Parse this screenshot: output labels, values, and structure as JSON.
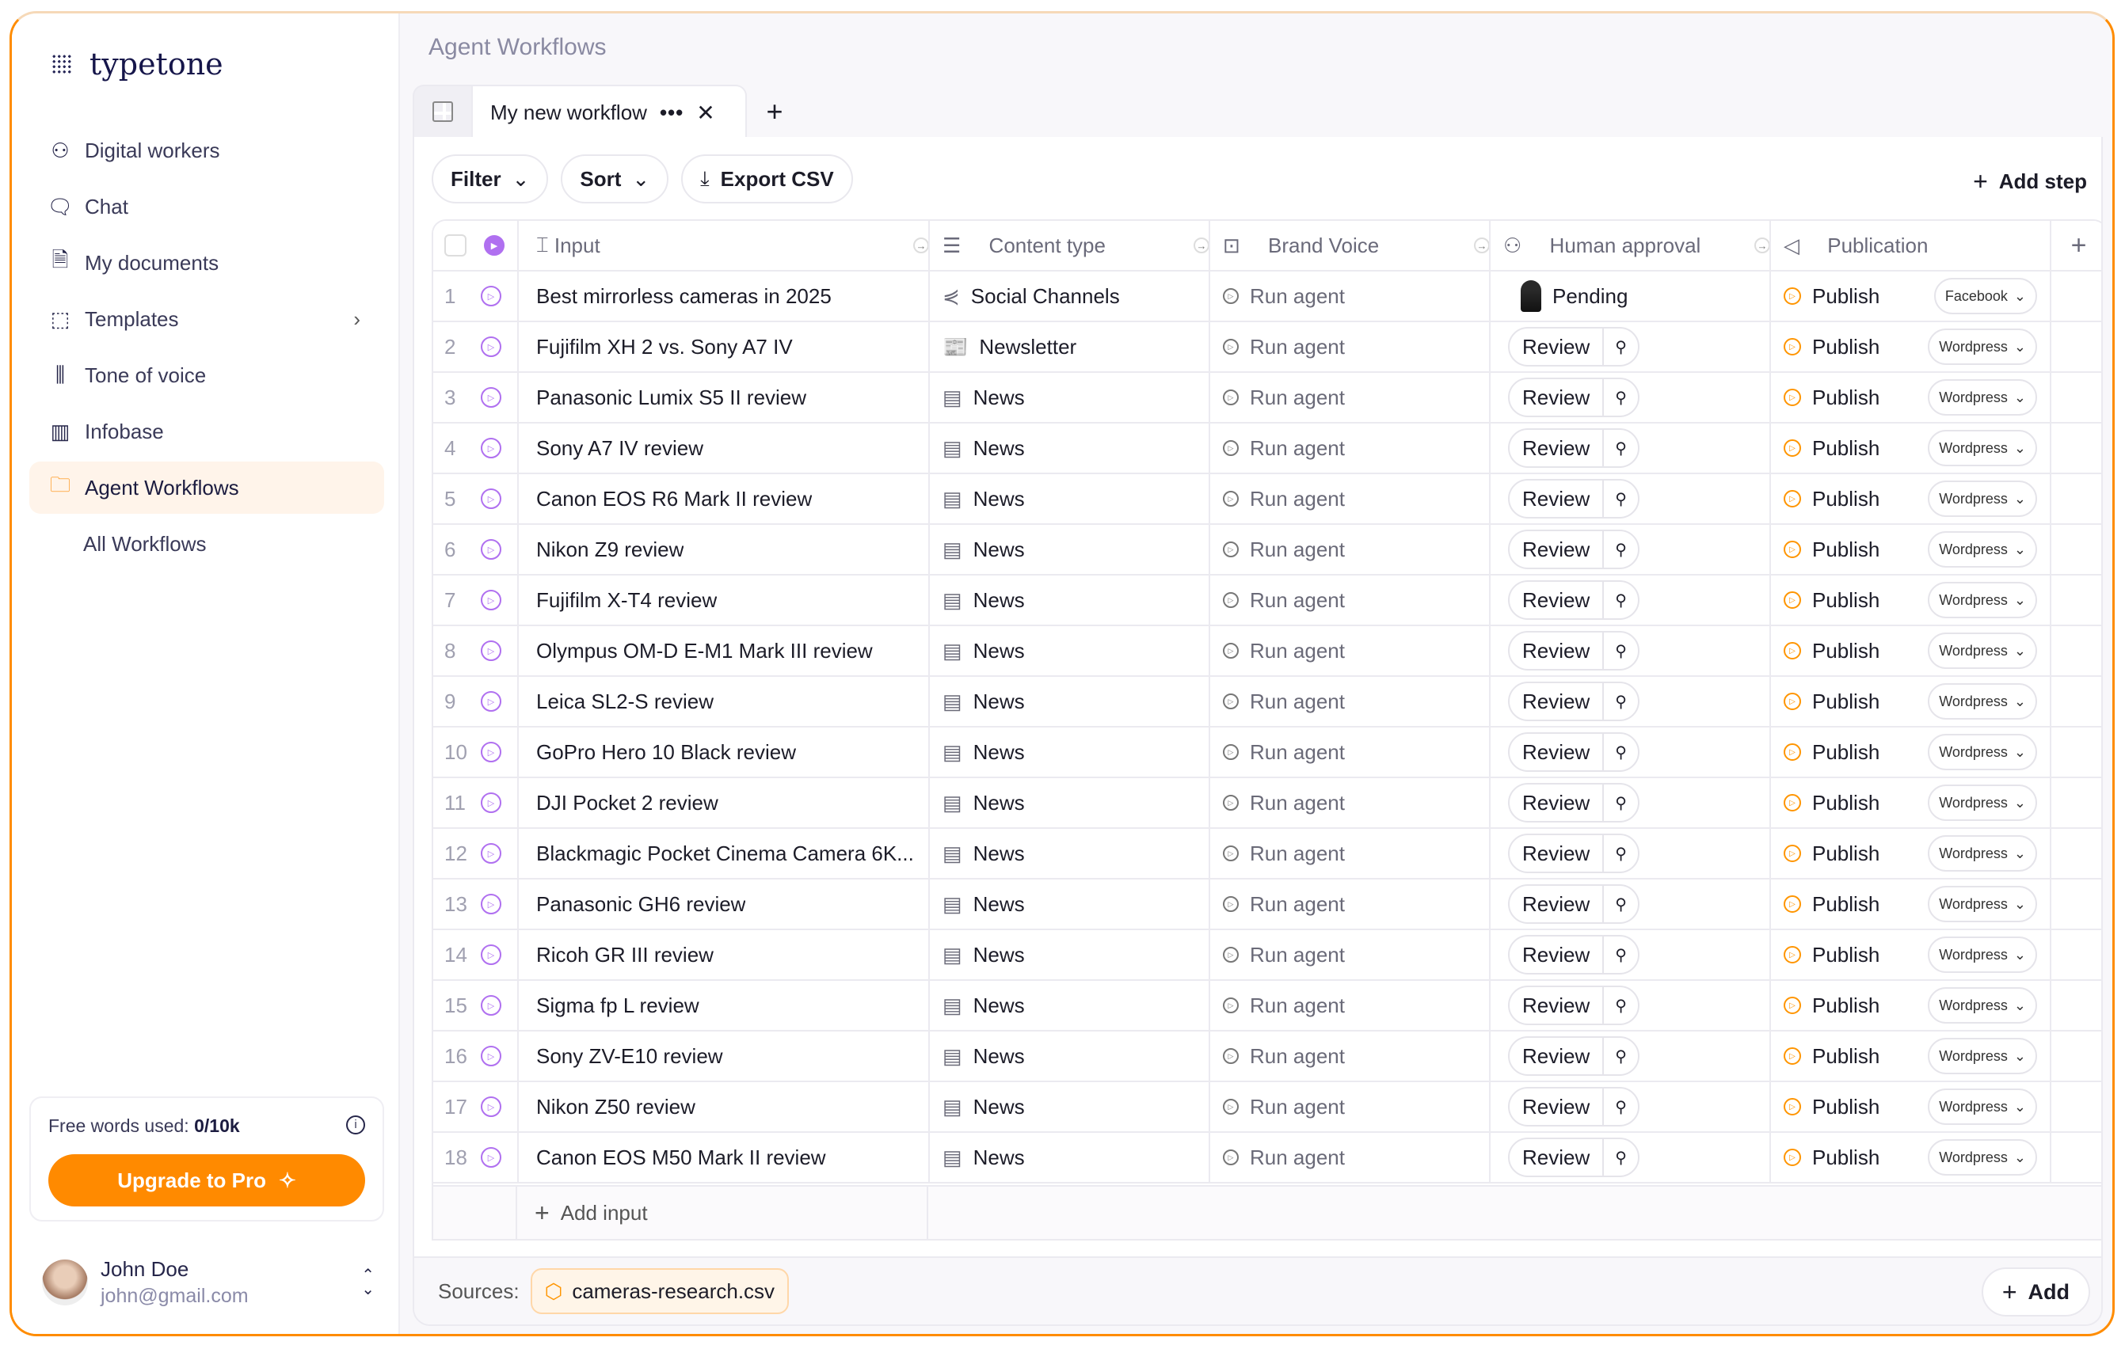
{
  "brand": {
    "name": "typetone",
    "accent": "#ff8a00",
    "border": "#ff8c00"
  },
  "sidebar": {
    "items": [
      {
        "label": "Digital workers",
        "icon": "user-plus-icon"
      },
      {
        "label": "Chat",
        "icon": "chat-icon"
      },
      {
        "label": "My documents",
        "icon": "document-icon"
      },
      {
        "label": "Templates",
        "icon": "template-icon",
        "chevron": true
      },
      {
        "label": "Tone of voice",
        "icon": "waveform-icon"
      },
      {
        "label": "Infobase",
        "icon": "books-icon"
      },
      {
        "label": "Agent Workflows",
        "icon": "folder-icon",
        "active": true
      },
      {
        "label": "All Workflows",
        "sub": true
      }
    ],
    "usage": {
      "label": "Free words used:",
      "value": "0/10k"
    },
    "upgrade_label": "Upgrade to Pro",
    "user": {
      "name": "John Doe",
      "email": "john@gmail.com"
    }
  },
  "main": {
    "title": "Agent Workflows",
    "tab": "My new workflow",
    "toolbar": {
      "filter": "Filter",
      "sort": "Sort",
      "export": "Export CSV",
      "add_step": "Add step"
    },
    "columns": [
      "Input",
      "Content type",
      "Brand Voice",
      "Human approval",
      "Publication"
    ],
    "rows": [
      {
        "n": "1",
        "input": "Best mirrorless cameras in 2025",
        "type": "Social Channels",
        "voice": "Run agent",
        "approval": "Pending",
        "publish": "Publish",
        "target": "Facebook"
      },
      {
        "n": "2",
        "input": "Fujifilm XH 2 vs. Sony A7 IV",
        "type": "Newsletter",
        "voice": "Run agent",
        "approval": "Review",
        "publish": "Publish",
        "target": "Wordpress"
      },
      {
        "n": "3",
        "input": "Panasonic Lumix S5 II review",
        "type": "News",
        "voice": "Run agent",
        "approval": "Review",
        "publish": "Publish",
        "target": "Wordpress"
      },
      {
        "n": "4",
        "input": "Sony A7 IV review",
        "type": "News",
        "voice": "Run agent",
        "approval": "Review",
        "publish": "Publish",
        "target": "Wordpress"
      },
      {
        "n": "5",
        "input": "Canon EOS R6 Mark II review",
        "type": "News",
        "voice": "Run agent",
        "approval": "Review",
        "publish": "Publish",
        "target": "Wordpress"
      },
      {
        "n": "6",
        "input": "Nikon Z9 review",
        "type": "News",
        "voice": "Run agent",
        "approval": "Review",
        "publish": "Publish",
        "target": "Wordpress"
      },
      {
        "n": "7",
        "input": "Fujifilm X-T4 review",
        "type": "News",
        "voice": "Run agent",
        "approval": "Review",
        "publish": "Publish",
        "target": "Wordpress"
      },
      {
        "n": "8",
        "input": "Olympus OM-D E-M1 Mark III review",
        "type": "News",
        "voice": "Run agent",
        "approval": "Review",
        "publish": "Publish",
        "target": "Wordpress"
      },
      {
        "n": "9",
        "input": "Leica SL2-S review",
        "type": "News",
        "voice": "Run agent",
        "approval": "Review",
        "publish": "Publish",
        "target": "Wordpress"
      },
      {
        "n": "10",
        "input": "GoPro Hero 10 Black review",
        "type": "News",
        "voice": "Run agent",
        "approval": "Review",
        "publish": "Publish",
        "target": "Wordpress"
      },
      {
        "n": "11",
        "input": "DJI Pocket 2 review",
        "type": "News",
        "voice": "Run agent",
        "approval": "Review",
        "publish": "Publish",
        "target": "Wordpress"
      },
      {
        "n": "12",
        "input": "Blackmagic Pocket Cinema Camera 6K...",
        "type": "News",
        "voice": "Run agent",
        "approval": "Review",
        "publish": "Publish",
        "target": "Wordpress"
      },
      {
        "n": "13",
        "input": "Panasonic GH6 review",
        "type": "News",
        "voice": "Run agent",
        "approval": "Review",
        "publish": "Publish",
        "target": "Wordpress"
      },
      {
        "n": "14",
        "input": "Ricoh GR III review",
        "type": "News",
        "voice": "Run agent",
        "approval": "Review",
        "publish": "Publish",
        "target": "Wordpress"
      },
      {
        "n": "15",
        "input": "Sigma fp L review",
        "type": "News",
        "voice": "Run agent",
        "approval": "Review",
        "publish": "Publish",
        "target": "Wordpress"
      },
      {
        "n": "16",
        "input": "Sony ZV-E10 review",
        "type": "News",
        "voice": "Run agent",
        "approval": "Review",
        "publish": "Publish",
        "target": "Wordpress"
      },
      {
        "n": "17",
        "input": "Nikon Z50 review",
        "type": "News",
        "voice": "Run agent",
        "approval": "Review",
        "publish": "Publish",
        "target": "Wordpress"
      },
      {
        "n": "18",
        "input": "Canon EOS M50 Mark II review",
        "type": "News",
        "voice": "Run agent",
        "approval": "Review",
        "publish": "Publish",
        "target": "Wordpress"
      }
    ],
    "add_input": "Add input",
    "sources_label": "Sources:",
    "source_file": "cameras-research.csv",
    "add_label": "Add"
  }
}
